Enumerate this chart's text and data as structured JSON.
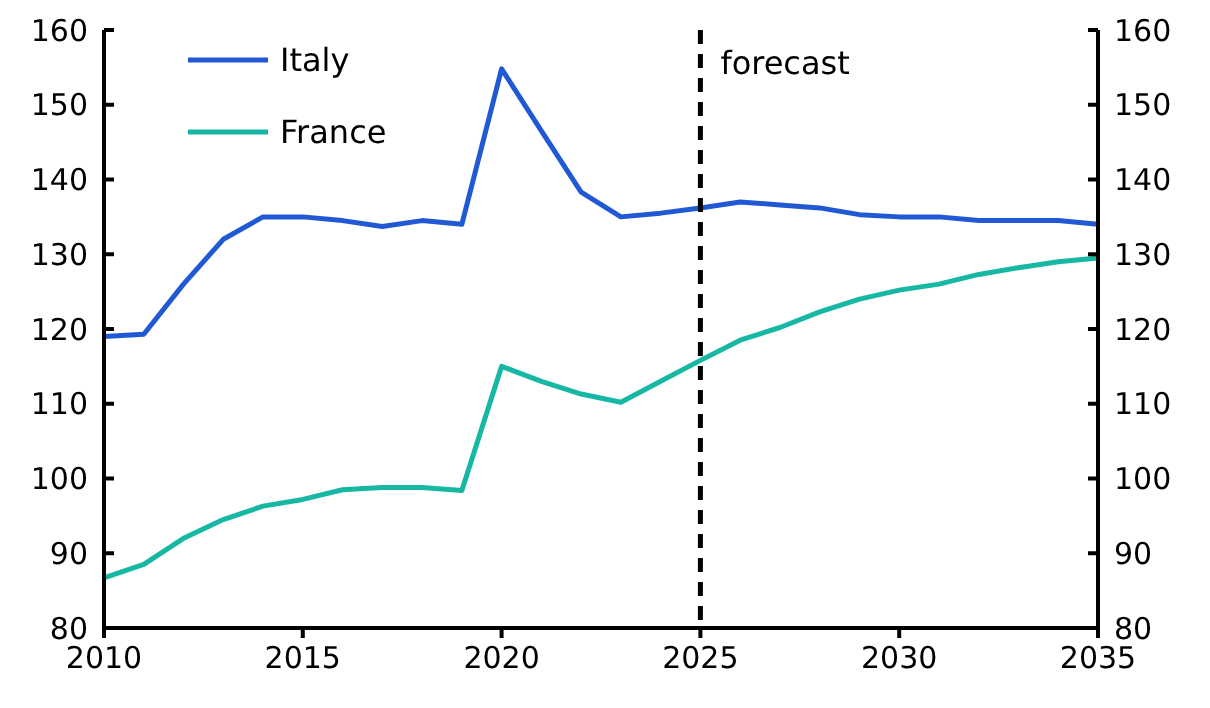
{
  "chart_data": {
    "type": "line",
    "x": [
      2010,
      2011,
      2012,
      2013,
      2014,
      2015,
      2016,
      2017,
      2018,
      2019,
      2020,
      2021,
      2022,
      2023,
      2024,
      2025,
      2026,
      2027,
      2028,
      2029,
      2030,
      2031,
      2032,
      2033,
      2034,
      2035
    ],
    "series": [
      {
        "name": "Italy",
        "color": "#2159d4",
        "values": [
          119,
          119.3,
          126,
          132,
          135,
          135,
          134.5,
          133.7,
          134.5,
          134,
          154.8,
          146.5,
          138.3,
          135,
          135.5,
          136.2,
          137,
          136.6,
          136.2,
          135.3,
          135,
          135,
          134.5,
          134.5,
          134.5,
          134
        ]
      },
      {
        "name": "France",
        "color": "#17b8a3",
        "values": [
          86.7,
          88.5,
          92,
          94.5,
          96.3,
          97.2,
          98.5,
          98.8,
          98.8,
          98.4,
          115,
          113,
          111.3,
          110.2,
          113,
          115.8,
          118.5,
          120.2,
          122.3,
          124,
          125.2,
          126,
          127.3,
          128.2,
          129,
          129.5
        ]
      }
    ],
    "xlim": [
      2010,
      2035
    ],
    "xticks": [
      2010,
      2015,
      2020,
      2025,
      2030,
      2035
    ],
    "ylim": [
      80,
      160
    ],
    "yticks": [
      80,
      90,
      100,
      110,
      120,
      130,
      140,
      150,
      160
    ],
    "y2lim": [
      80,
      160
    ],
    "y2ticks": [
      80,
      90,
      100,
      110,
      120,
      130,
      140,
      150,
      160
    ],
    "ref_lines": [
      {
        "axis": "x",
        "value": 2025,
        "label": "forecast",
        "color": "#000000",
        "line_style": "dashed"
      }
    ],
    "legend": "top left",
    "grid": false,
    "marker": "none",
    "line_style": "solid"
  }
}
